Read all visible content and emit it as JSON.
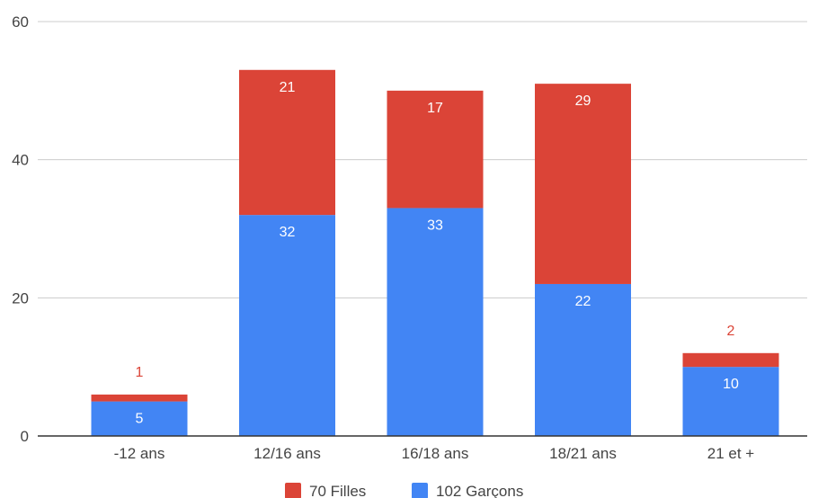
{
  "chart_data": {
    "type": "bar",
    "stacked": true,
    "categories": [
      "-12 ans",
      "12/16 ans",
      "16/18 ans",
      "18/21 ans",
      "21 et +"
    ],
    "series": [
      {
        "name": "102 Garçons",
        "values": [
          5,
          32,
          33,
          22,
          10
        ],
        "color": "#4285f4"
      },
      {
        "name": "70 Filles",
        "values": [
          1,
          21,
          17,
          29,
          2
        ],
        "color": "#db4437"
      }
    ],
    "ylim": [
      0,
      60
    ],
    "yticks": [
      0,
      20,
      40,
      60
    ],
    "grid": true,
    "legend_position": "bottom",
    "legend_order": [
      "70 Filles",
      "102 Garçons"
    ],
    "label_color_inside": "#ffffff",
    "label_color_outside": "#db4437"
  }
}
